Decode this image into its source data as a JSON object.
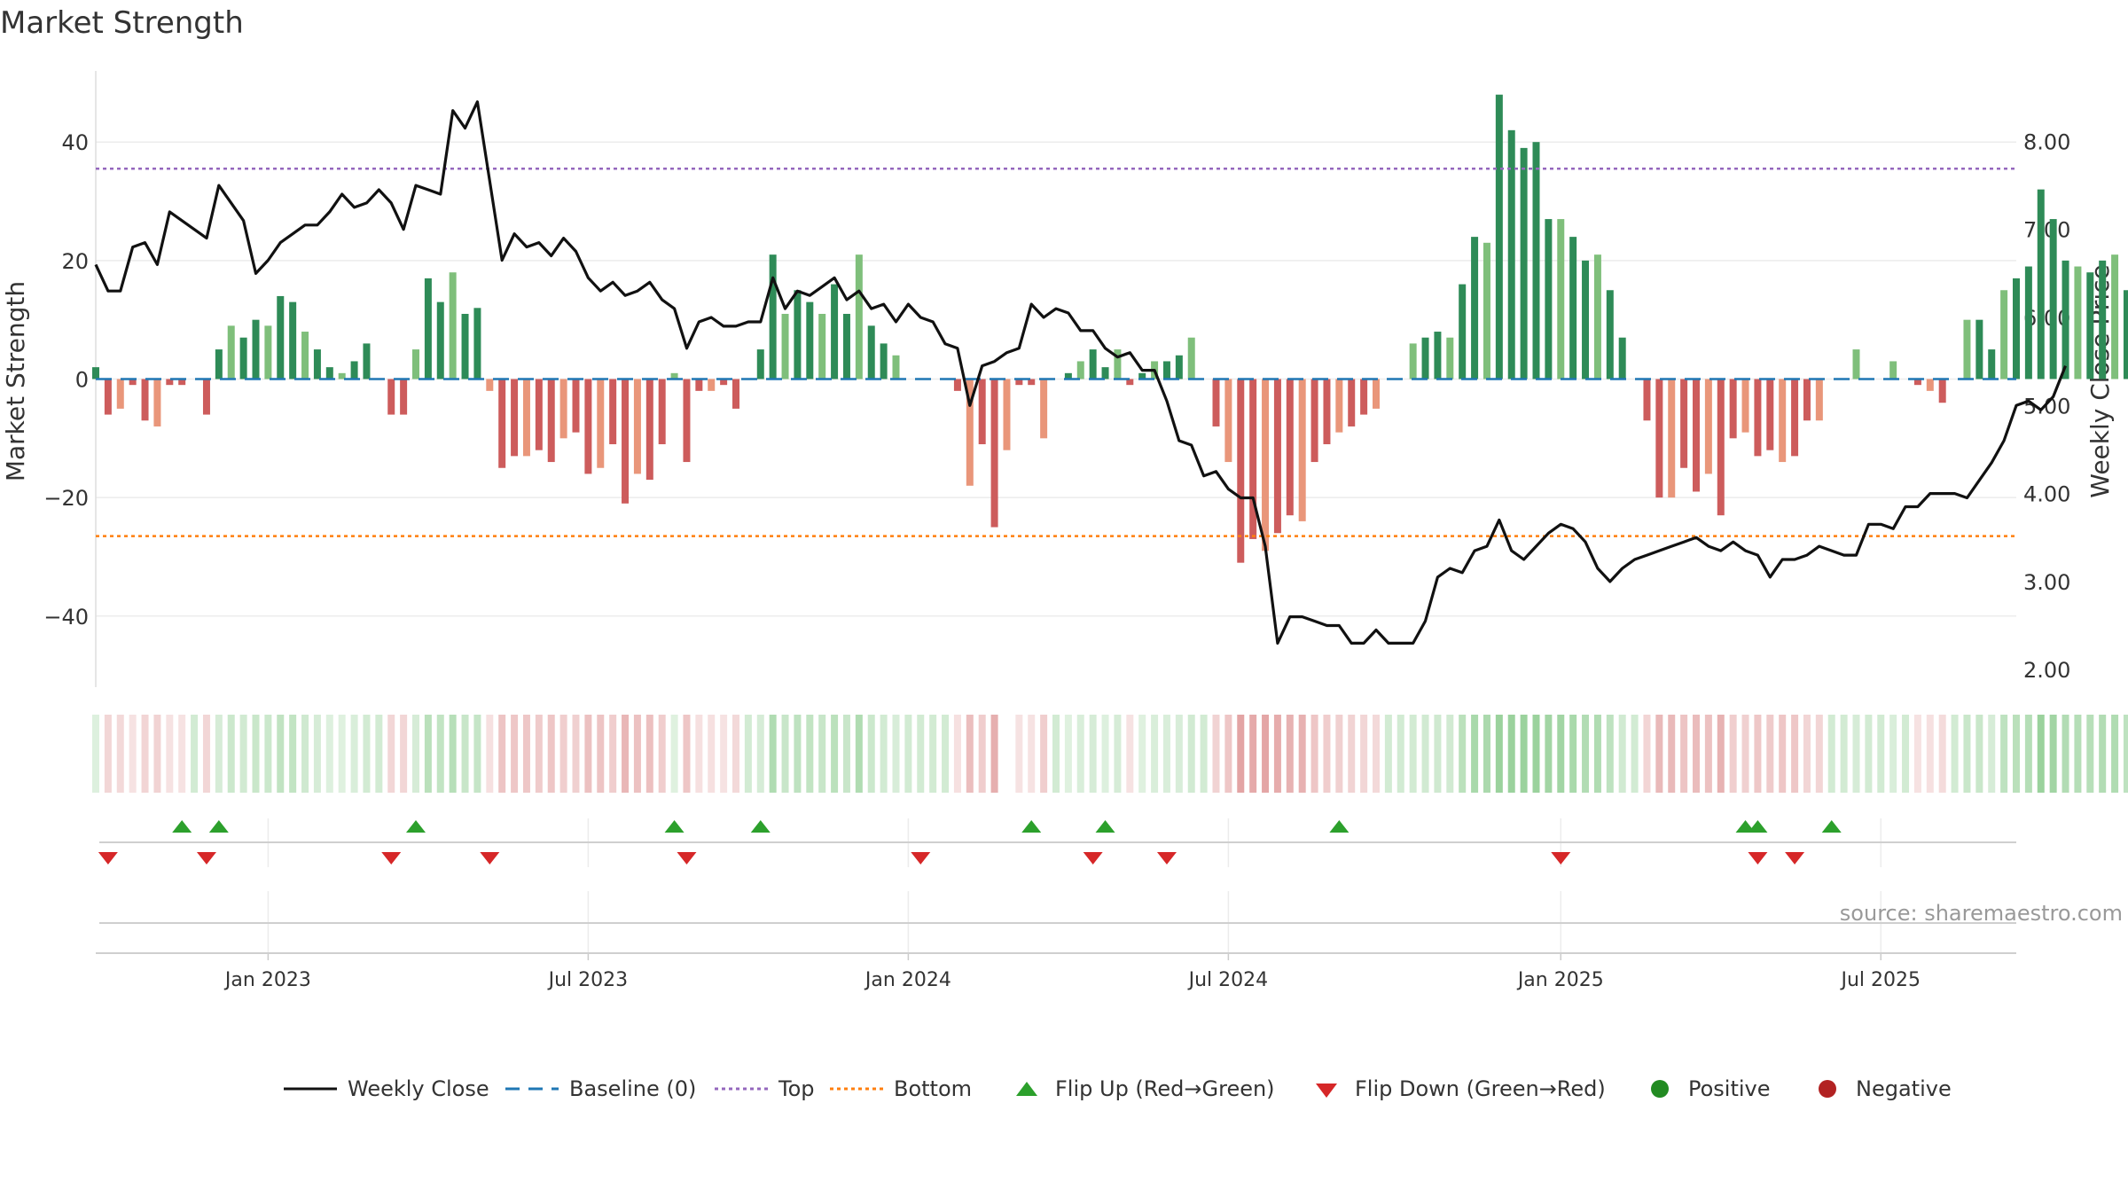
{
  "chart_data": {
    "type": "bar",
    "title": "Market Strength",
    "ylabel_left": "Market Strength",
    "ylabel_right": "Weekly Close Price",
    "left_axis": {
      "ylim": [
        -52,
        52
      ],
      "ticks": [
        40,
        20,
        0,
        -20,
        -40
      ],
      "tick_labels": [
        "40",
        "20",
        "0",
        "−20",
        "−40"
      ]
    },
    "right_axis": {
      "ylim": [
        1.8,
        8.8
      ],
      "ticks": [
        8,
        7,
        6,
        5,
        4,
        3,
        2
      ],
      "tick_labels": [
        "8.00",
        "7.00",
        "6.00",
        "5.00",
        "4.00",
        "3.00",
        "2.00"
      ]
    },
    "x_axis": {
      "start": "2022-09-26",
      "end": "2025-09-22",
      "ticks": [
        {
          "date": "2023-01-02",
          "label": "Jan 2023"
        },
        {
          "date": "2023-07-03",
          "label": "Jul 2023"
        },
        {
          "date": "2024-01-01",
          "label": "Jan 2024"
        },
        {
          "date": "2024-07-01",
          "label": "Jul 2024"
        },
        {
          "date": "2025-01-06",
          "label": "Jan 2025"
        },
        {
          "date": "2025-07-07",
          "label": "Jul 2025"
        }
      ]
    },
    "reference_lines": {
      "top": 35.5,
      "bottom": -26.5,
      "baseline": 0
    },
    "week_start": "2022-09-26",
    "strength": [
      2,
      -6,
      -5,
      -1,
      -7,
      -8,
      -1,
      -1,
      0,
      -6,
      5,
      9,
      7,
      10,
      9,
      14,
      13,
      8,
      5,
      2,
      1,
      3,
      6,
      0,
      -6,
      -6,
      5,
      17,
      13,
      18,
      11,
      12,
      -2,
      -15,
      -13,
      -13,
      -12,
      -14,
      -10,
      -9,
      -16,
      -15,
      -11,
      -21,
      -16,
      -17,
      -11,
      1,
      -14,
      -2,
      -2,
      -1,
      -5,
      0,
      5,
      21,
      11,
      15,
      13,
      11,
      16,
      11,
      21,
      9,
      6,
      4,
      0,
      0,
      0,
      0,
      -2,
      -18,
      -11,
      -25,
      -12,
      -1,
      -1,
      -10,
      0,
      1,
      3,
      5,
      2,
      5,
      -1,
      1,
      3,
      3,
      4,
      7,
      0,
      -8,
      -14,
      -31,
      -27,
      -29,
      -26,
      -23,
      -24,
      -14,
      -11,
      -9,
      -8,
      -6,
      -5,
      0,
      0,
      6,
      7,
      8,
      7,
      16,
      24,
      23,
      48,
      42,
      39,
      40,
      27,
      27,
      24,
      20,
      21,
      15,
      7,
      0,
      -7,
      -20,
      -20,
      -15,
      -19,
      -16,
      -23,
      -10,
      -9,
      -13,
      -12,
      -14,
      -13,
      -7,
      -7,
      0,
      0,
      5,
      0,
      0,
      3,
      0,
      -1,
      -2,
      -4,
      0,
      10,
      10,
      5,
      15,
      17,
      19,
      32,
      27,
      20,
      19,
      18,
      20,
      21,
      15,
      11,
      11
    ],
    "weekly_close": [
      6.6,
      6.3,
      6.3,
      6.8,
      6.85,
      6.6,
      7.2,
      7.1,
      7.0,
      6.9,
      7.5,
      7.3,
      7.1,
      6.5,
      6.65,
      6.85,
      6.95,
      7.05,
      7.05,
      7.2,
      7.4,
      7.25,
      7.3,
      7.45,
      7.3,
      7.0,
      7.5,
      7.45,
      7.4,
      8.35,
      8.15,
      8.45,
      7.55,
      6.65,
      6.95,
      6.8,
      6.85,
      6.7,
      6.9,
      6.75,
      6.45,
      6.3,
      6.4,
      6.25,
      6.3,
      6.4,
      6.2,
      6.1,
      5.65,
      5.95,
      6.0,
      5.9,
      5.9,
      5.95,
      5.95,
      6.45,
      6.1,
      6.3,
      6.25,
      6.35,
      6.45,
      6.2,
      6.3,
      6.1,
      6.15,
      5.95,
      6.15,
      6.0,
      5.95,
      5.7,
      5.65,
      5.0,
      5.45,
      5.5,
      5.6,
      5.65,
      6.15,
      6.0,
      6.1,
      6.05,
      5.85,
      5.85,
      5.65,
      5.55,
      5.6,
      5.4,
      5.4,
      5.05,
      4.6,
      4.55,
      4.2,
      4.25,
      4.05,
      3.95,
      3.95,
      3.4,
      2.3,
      2.6,
      2.6,
      2.55,
      2.5,
      2.5,
      2.3,
      2.3,
      2.45,
      2.3,
      2.3,
      2.3,
      2.55,
      3.05,
      3.15,
      3.1,
      3.35,
      3.4,
      3.7,
      3.35,
      3.25,
      3.4,
      3.55,
      3.65,
      3.6,
      3.45,
      3.15,
      3.0,
      3.15,
      3.25,
      3.3,
      3.35,
      3.4,
      3.45,
      3.5,
      3.4,
      3.35,
      3.45,
      3.35,
      3.3,
      3.05,
      3.25,
      3.25,
      3.3,
      3.4,
      3.35,
      3.3,
      3.3,
      3.65,
      3.65,
      3.6,
      3.85,
      3.85,
      4.0,
      4.0,
      4.0,
      3.95,
      4.15,
      4.35,
      4.6,
      5.0,
      5.05,
      4.95,
      5.1,
      5.45
    ],
    "flip_up_weeks": [
      7,
      10,
      26,
      47,
      54,
      76,
      82,
      101,
      134,
      135,
      141
    ],
    "flip_down_weeks": [
      1,
      9,
      24,
      32,
      48,
      67,
      81,
      87,
      119,
      135,
      138
    ],
    "regime_band_missing_weeks": [
      74
    ],
    "legend": [
      {
        "key": "weekly_close",
        "label": "Weekly Close"
      },
      {
        "key": "baseline",
        "label": "Baseline (0)"
      },
      {
        "key": "top",
        "label": "Top"
      },
      {
        "key": "bottom",
        "label": "Bottom"
      },
      {
        "key": "flip_up",
        "label": "Flip Up (Red→Green)"
      },
      {
        "key": "flip_down",
        "label": "Flip Down (Green→Red)"
      },
      {
        "key": "positive",
        "label": "Positive"
      },
      {
        "key": "negative",
        "label": "Negative"
      }
    ],
    "legend_position": "bottom-center",
    "grid": true,
    "colors": {
      "pos_strong": "#2e8b57",
      "pos_light": "#7fbf7b",
      "neg_strong": "#cd5c5c",
      "neg_light": "#e9967a",
      "line": "#111111",
      "baseline": "#1f77b4",
      "top": "#9467bd",
      "bottom": "#ff7f0e",
      "flip_up": "#2ca02c",
      "flip_down": "#d62728",
      "positive": "#228b22",
      "negative": "#b22222"
    }
  },
  "page": {
    "title": "Market Strength",
    "source": "source: sharemaestro.com"
  }
}
